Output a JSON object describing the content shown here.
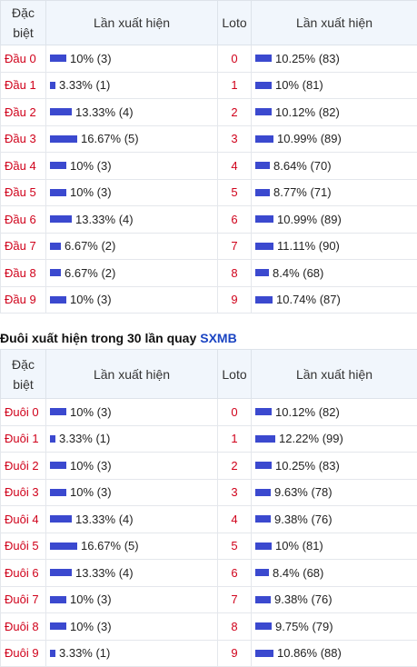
{
  "colors": {
    "bar": "#3b49cf",
    "label": "#d0021b",
    "brand": "#1a44c2",
    "header_bg": "#f1f6fc"
  },
  "table1": {
    "headers": {
      "col1": "Đặc biệt",
      "col2": "Lần xuất hiện",
      "col3": "Loto",
      "col4": "Lần xuất hiện"
    },
    "rows": [
      {
        "label": "Đầu 0",
        "db_pct": 10,
        "db_text": "10% (3)",
        "loto": "0",
        "lo_pct": 10.25,
        "lo_text": "10.25% (83)"
      },
      {
        "label": "Đầu 1",
        "db_pct": 3.33,
        "db_text": "3.33% (1)",
        "loto": "1",
        "lo_pct": 10,
        "lo_text": "10% (81)"
      },
      {
        "label": "Đầu 2",
        "db_pct": 13.33,
        "db_text": "13.33% (4)",
        "loto": "2",
        "lo_pct": 10.12,
        "lo_text": "10.12% (82)"
      },
      {
        "label": "Đầu 3",
        "db_pct": 16.67,
        "db_text": "16.67% (5)",
        "loto": "3",
        "lo_pct": 10.99,
        "lo_text": "10.99% (89)"
      },
      {
        "label": "Đầu 4",
        "db_pct": 10,
        "db_text": "10% (3)",
        "loto": "4",
        "lo_pct": 8.64,
        "lo_text": "8.64% (70)"
      },
      {
        "label": "Đầu 5",
        "db_pct": 10,
        "db_text": "10% (3)",
        "loto": "5",
        "lo_pct": 8.77,
        "lo_text": "8.77% (71)"
      },
      {
        "label": "Đầu 6",
        "db_pct": 13.33,
        "db_text": "13.33% (4)",
        "loto": "6",
        "lo_pct": 10.99,
        "lo_text": "10.99% (89)"
      },
      {
        "label": "Đầu 7",
        "db_pct": 6.67,
        "db_text": "6.67% (2)",
        "loto": "7",
        "lo_pct": 11.11,
        "lo_text": "11.11% (90)"
      },
      {
        "label": "Đầu 8",
        "db_pct": 6.67,
        "db_text": "6.67% (2)",
        "loto": "8",
        "lo_pct": 8.4,
        "lo_text": "8.4% (68)"
      },
      {
        "label": "Đầu 9",
        "db_pct": 10,
        "db_text": "10% (3)",
        "loto": "9",
        "lo_pct": 10.74,
        "lo_text": "10.74% (87)"
      }
    ]
  },
  "section2": {
    "title": "Đuôi xuất hiện trong 30 lần quay",
    "brand": "SXMB"
  },
  "table2": {
    "headers": {
      "col1": "Đặc biệt",
      "col2": "Lần xuất hiện",
      "col3": "Loto",
      "col4": "Lần xuất hiện"
    },
    "rows": [
      {
        "label": "Đuôi 0",
        "db_pct": 10,
        "db_text": "10% (3)",
        "loto": "0",
        "lo_pct": 10.12,
        "lo_text": "10.12% (82)"
      },
      {
        "label": "Đuôi 1",
        "db_pct": 3.33,
        "db_text": "3.33% (1)",
        "loto": "1",
        "lo_pct": 12.22,
        "lo_text": "12.22% (99)"
      },
      {
        "label": "Đuôi 2",
        "db_pct": 10,
        "db_text": "10% (3)",
        "loto": "2",
        "lo_pct": 10.25,
        "lo_text": "10.25% (83)"
      },
      {
        "label": "Đuôi 3",
        "db_pct": 10,
        "db_text": "10% (3)",
        "loto": "3",
        "lo_pct": 9.63,
        "lo_text": "9.63% (78)"
      },
      {
        "label": "Đuôi 4",
        "db_pct": 13.33,
        "db_text": "13.33% (4)",
        "loto": "4",
        "lo_pct": 9.38,
        "lo_text": "9.38% (76)"
      },
      {
        "label": "Đuôi 5",
        "db_pct": 16.67,
        "db_text": "16.67% (5)",
        "loto": "5",
        "lo_pct": 10,
        "lo_text": "10% (81)"
      },
      {
        "label": "Đuôi 6",
        "db_pct": 13.33,
        "db_text": "13.33% (4)",
        "loto": "6",
        "lo_pct": 8.4,
        "lo_text": "8.4% (68)"
      },
      {
        "label": "Đuôi 7",
        "db_pct": 10,
        "db_text": "10% (3)",
        "loto": "7",
        "lo_pct": 9.38,
        "lo_text": "9.38% (76)"
      },
      {
        "label": "Đuôi 8",
        "db_pct": 10,
        "db_text": "10% (3)",
        "loto": "8",
        "lo_pct": 9.75,
        "lo_text": "9.75% (79)"
      },
      {
        "label": "Đuôi 9",
        "db_pct": 3.33,
        "db_text": "3.33% (1)",
        "loto": "9",
        "lo_pct": 10.86,
        "lo_text": "10.86% (88)"
      }
    ]
  }
}
